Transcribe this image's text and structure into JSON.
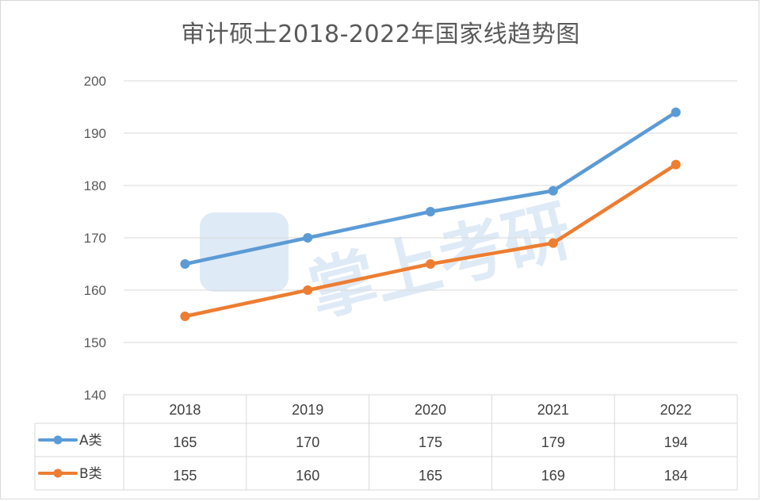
{
  "chart_data": {
    "type": "line",
    "title": "审计硕士2018-2022年国家线趋势图",
    "categories": [
      "2018",
      "2019",
      "2020",
      "2021",
      "2022"
    ],
    "ylim": [
      140,
      200
    ],
    "yticks": [
      140,
      150,
      160,
      170,
      180,
      190,
      200
    ],
    "grid": true,
    "legend": "data-table-left",
    "series": [
      {
        "name": "A类",
        "values": [
          165,
          170,
          175,
          179,
          194
        ],
        "color": "#5b9bd5"
      },
      {
        "name": "B类",
        "values": [
          155,
          160,
          165,
          169,
          184
        ],
        "color": "#ed7d31"
      }
    ],
    "watermark": "掌上考研"
  }
}
